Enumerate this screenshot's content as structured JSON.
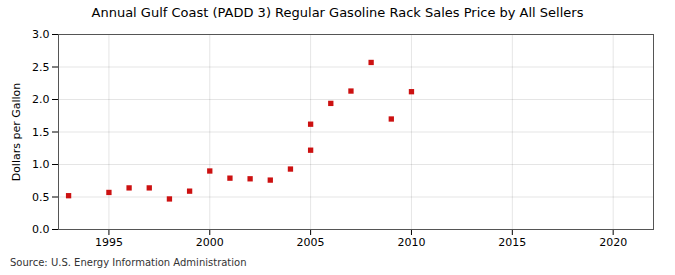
{
  "chart_data": {
    "type": "scatter",
    "title": "Annual Gulf Coast (PADD 3) Regular Gasoline Rack Sales Price by All Sellers",
    "ylabel": "Dollars per Gallon",
    "source": "Source: U.S. Energy Information Administration",
    "x": [
      1993,
      1995,
      1996,
      1997,
      1998,
      1999,
      2000,
      2001,
      2002,
      2003,
      2004,
      2005,
      2005,
      2006,
      2007,
      2008,
      2009,
      2010
    ],
    "values": [
      0.52,
      0.57,
      0.64,
      0.64,
      0.47,
      0.59,
      0.9,
      0.79,
      0.78,
      0.76,
      0.93,
      1.22,
      1.62,
      1.94,
      2.13,
      2.57,
      1.7,
      2.12
    ],
    "color": "#cc1111",
    "marker": "square",
    "xlim": [
      1992.5,
      2022
    ],
    "ylim": [
      0.0,
      3.0
    ],
    "xticks": [
      1995,
      2000,
      2005,
      2010,
      2015,
      2020
    ],
    "yticks": [
      {
        "value": 0.0,
        "label": "0.0"
      },
      0.5,
      {
        "value": 1.0,
        "label": "1.0"
      },
      1.5,
      {
        "value": 2.0,
        "label": "2.0"
      },
      2.5,
      {
        "value": 3.0,
        "label": "3.0"
      }
    ],
    "grid": true
  }
}
